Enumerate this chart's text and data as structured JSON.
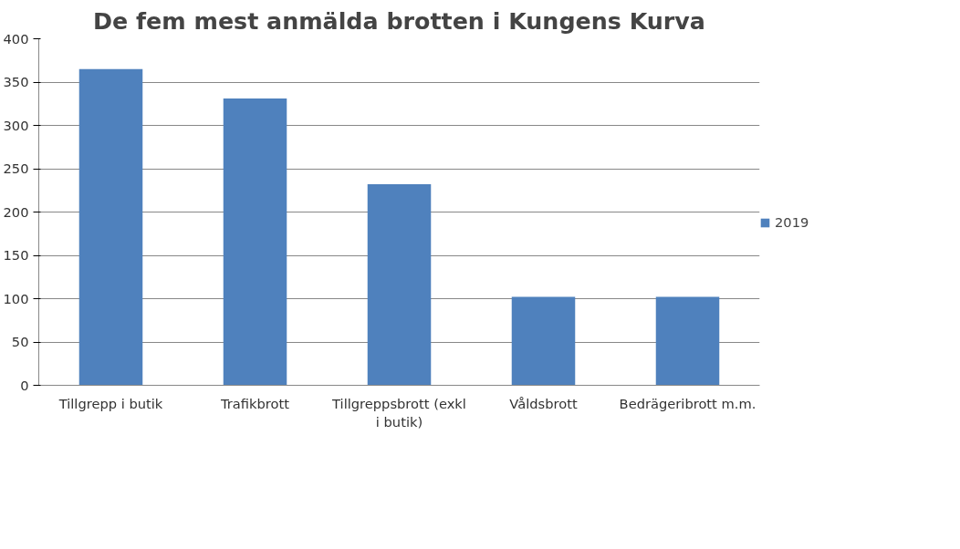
{
  "chart_data": {
    "type": "bar",
    "title": "De fem mest anmälda brotten i Kungens Kurva",
    "categories": [
      "Tillgrepp i butik",
      "Trafikbrott",
      "Tillgreppsbrott (exkl i butik)",
      "Våldsbrott",
      "Bedrägeribrott m.m."
    ],
    "series": [
      {
        "name": "2019",
        "color": "#4f81bd",
        "values": [
          365,
          331,
          232,
          102,
          102
        ]
      }
    ],
    "ylim": [
      0,
      400
    ],
    "yticks": [
      0,
      50,
      100,
      150,
      200,
      250,
      300,
      350,
      400
    ],
    "grid": "y",
    "legend": "right"
  }
}
